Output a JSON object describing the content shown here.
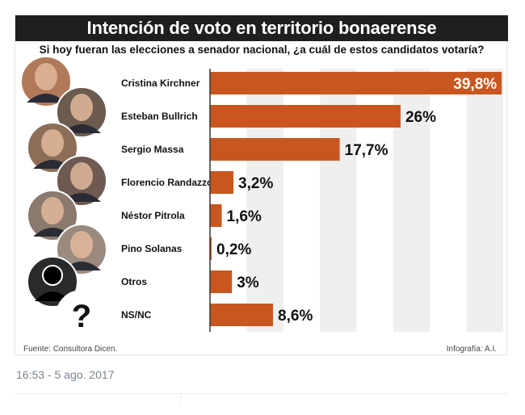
{
  "chart_data": {
    "type": "bar",
    "orientation": "horizontal",
    "title": "Intención de voto en territorio bonaerense",
    "subtitle": "Si hoy fueran las elecciones a senador nacional, ¿a cuál de estos candidatos votaría?",
    "categories": [
      "Cristina Kirchner",
      "Esteban Bullrich",
      "Sergio Massa",
      "Florencio Randazzo",
      "Néstor Pitrola",
      "Pino Solanas",
      "Otros",
      "NS/NC"
    ],
    "values": [
      39.8,
      26,
      17.7,
      3.2,
      1.6,
      0.2,
      3,
      8.6
    ],
    "value_labels": [
      "39,8%",
      "26%",
      "17,7%",
      "3,2%",
      "1,6%",
      "0,2%",
      "3%",
      "8,6%"
    ],
    "xlim": [
      0,
      40
    ],
    "grid": true,
    "bar_color": "#c8571f",
    "grid_color": "#efefef"
  },
  "footer": {
    "source": "Fuente: Consultora Dicen.",
    "credit": "Infografía: A.I."
  },
  "tweet": {
    "timestamp": "16:53 - 5 ago. 2017"
  },
  "icons": {
    "unknown_person": "person-silhouette-icon",
    "no_answer": "question-mark-icon"
  }
}
